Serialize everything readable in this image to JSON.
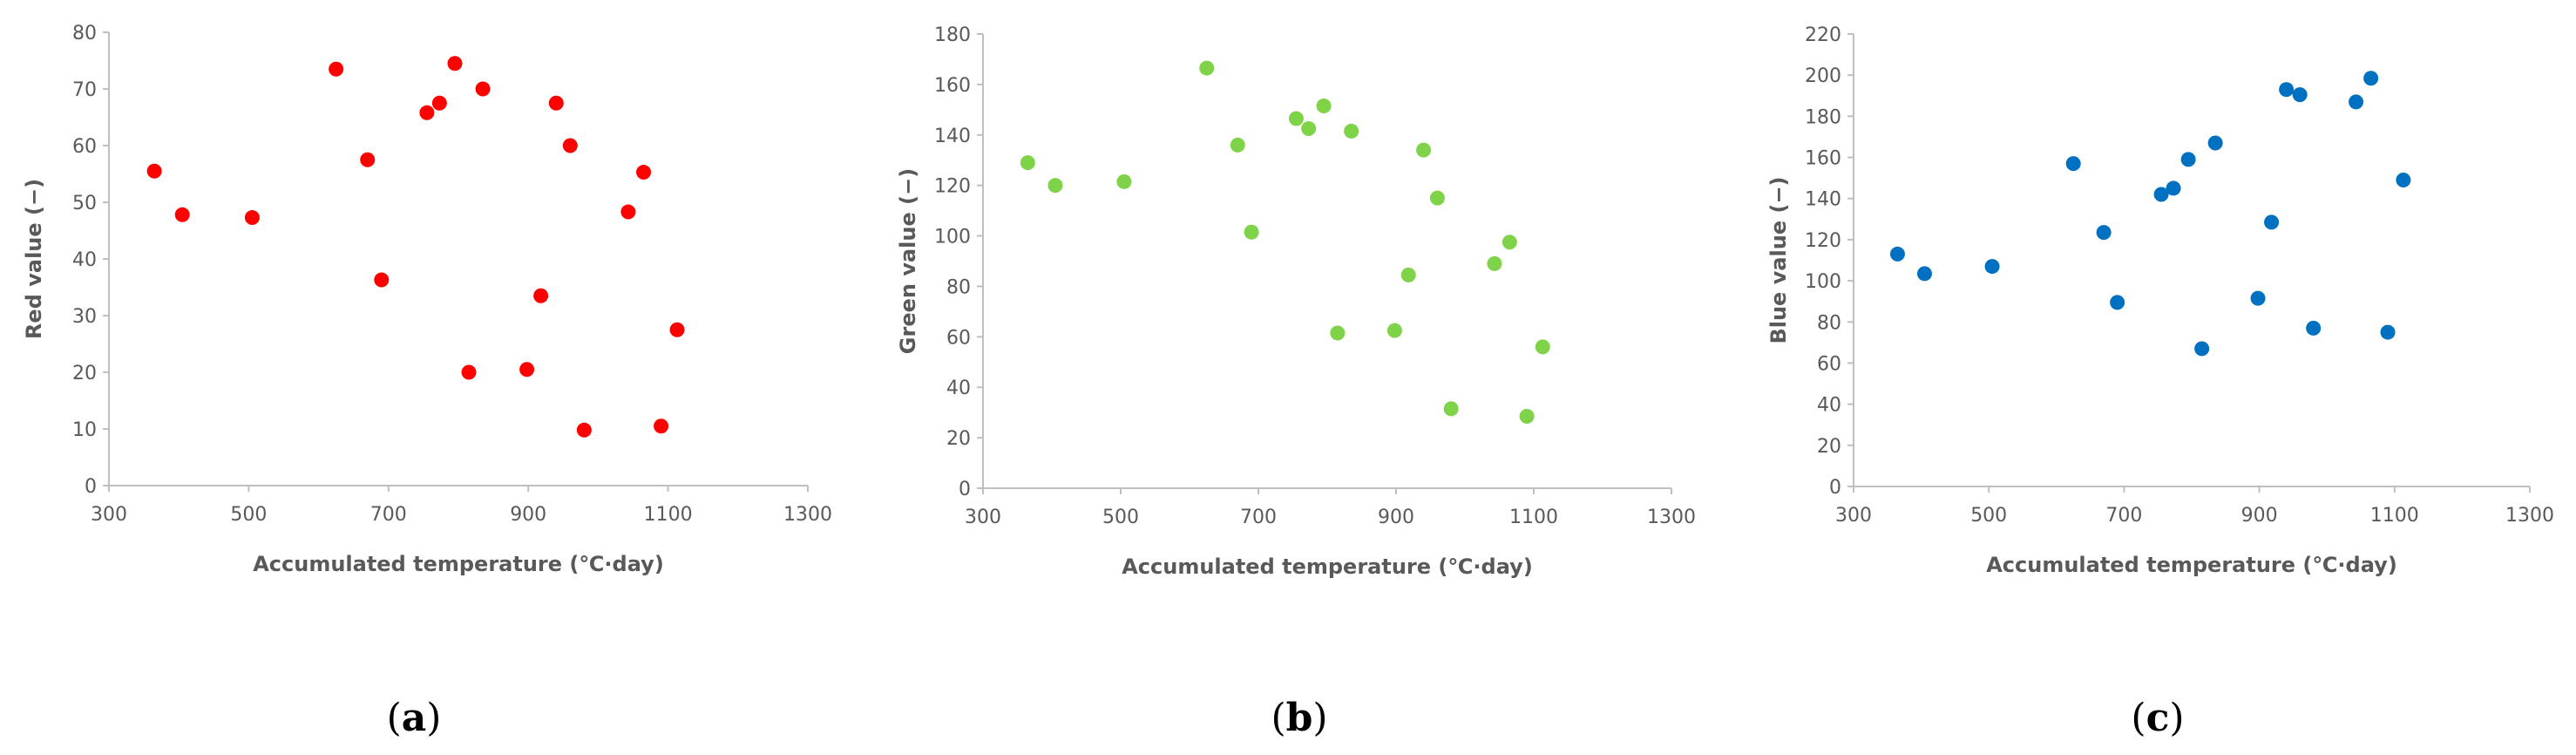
{
  "colors": {
    "axis": "#bfbfbf",
    "tick_text": "#595959"
  },
  "chart_data": [
    {
      "type": "scatter",
      "panel_label": "a",
      "xlabel": "Accumulated temperature (℃·day)",
      "ylabel": "Red value (−)",
      "xlim": [
        300,
        1300
      ],
      "ylim": [
        0,
        80
      ],
      "xticks": [
        300,
        500,
        700,
        900,
        1100,
        1300
      ],
      "yticks": [
        0,
        10,
        20,
        30,
        40,
        50,
        60,
        70,
        80
      ],
      "grid": false,
      "color": "#ff0000",
      "x": [
        365,
        405,
        505,
        625,
        670,
        690,
        755,
        773,
        795,
        815,
        835,
        898,
        918,
        940,
        960,
        980,
        1043,
        1065,
        1090,
        1113
      ],
      "y": [
        55.5,
        47.8,
        47.3,
        73.5,
        57.5,
        36.3,
        65.8,
        67.5,
        74.5,
        20.0,
        70.0,
        20.5,
        33.5,
        67.5,
        60.0,
        9.8,
        48.3,
        55.3,
        10.5,
        27.5
      ]
    },
    {
      "type": "scatter",
      "panel_label": "b",
      "xlabel": "Accumulated temperature (℃·day)",
      "ylabel": "Green value (−)",
      "xlim": [
        300,
        1300
      ],
      "ylim": [
        0,
        180
      ],
      "xticks": [
        300,
        500,
        700,
        900,
        1100,
        1300
      ],
      "yticks": [
        0,
        20,
        40,
        60,
        80,
        100,
        120,
        140,
        160,
        180
      ],
      "grid": false,
      "color": "#7ed348",
      "x": [
        365,
        405,
        505,
        625,
        670,
        690,
        755,
        773,
        795,
        815,
        835,
        898,
        918,
        940,
        960,
        980,
        1043,
        1065,
        1090,
        1113
      ],
      "y": [
        129,
        120,
        121.5,
        166.5,
        136,
        101.5,
        146.5,
        142.5,
        151.5,
        61.5,
        141.5,
        62.5,
        84.5,
        134,
        115,
        31.5,
        89,
        97.5,
        28.5,
        56
      ]
    },
    {
      "type": "scatter",
      "panel_label": "c",
      "xlabel": "Accumulated temperature (℃·day)",
      "ylabel": "Blue value (−)",
      "xlim": [
        300,
        1300
      ],
      "ylim": [
        0,
        220
      ],
      "xticks": [
        300,
        500,
        700,
        900,
        1100,
        1300
      ],
      "yticks": [
        0,
        20,
        40,
        60,
        80,
        100,
        120,
        140,
        160,
        180,
        200,
        220
      ],
      "grid": false,
      "color": "#0070c0",
      "x": [
        365,
        405,
        505,
        625,
        670,
        690,
        755,
        773,
        795,
        815,
        835,
        898,
        918,
        940,
        960,
        980,
        1043,
        1065,
        1090,
        1113
      ],
      "y": [
        113,
        103.5,
        107,
        157,
        123.5,
        89.5,
        142,
        145,
        159,
        67,
        167,
        91.5,
        128.5,
        193,
        190.5,
        77,
        187,
        198.5,
        75,
        149
      ]
    }
  ]
}
